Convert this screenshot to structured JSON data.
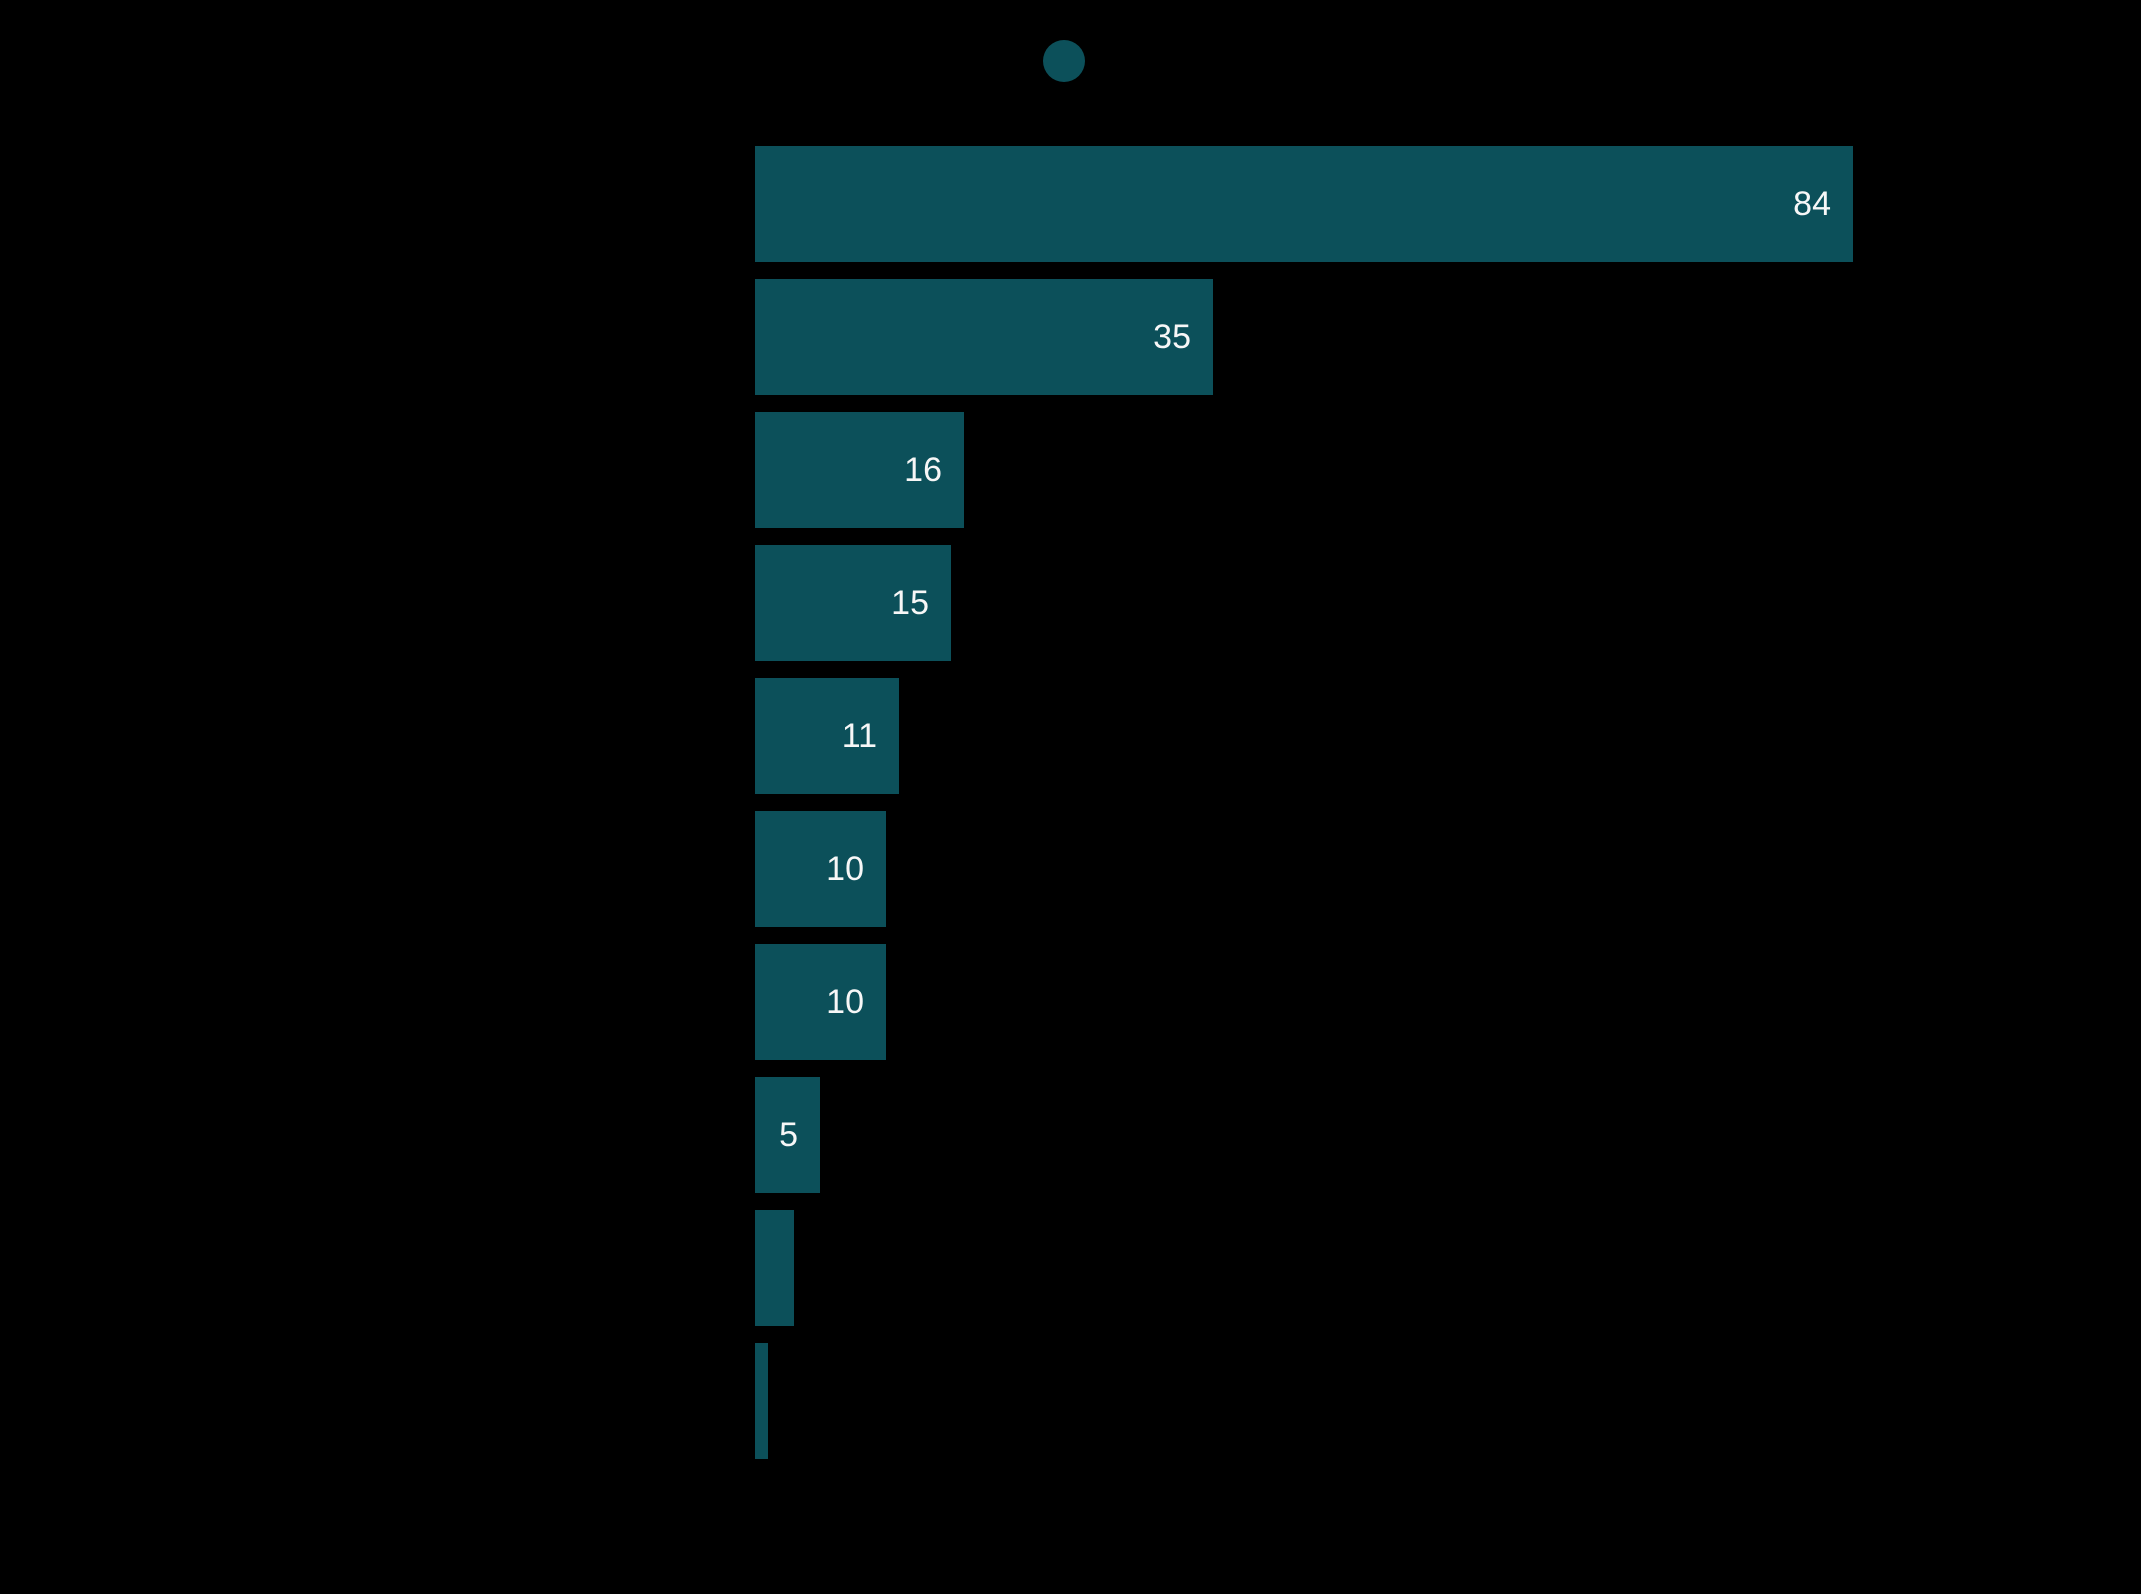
{
  "page": {
    "background_color": "#000000"
  },
  "legend": {
    "marker_color": "#0c505a",
    "label": "",
    "position": "top-center"
  },
  "chart_data": {
    "type": "bar",
    "orientation": "horizontal",
    "title": "",
    "xlabel": "",
    "ylabel": "",
    "categories": [
      "",
      "",
      "",
      "",
      "",
      "",
      "",
      "",
      "",
      ""
    ],
    "values": [
      84,
      35,
      16,
      15,
      11,
      10,
      10,
      5,
      3,
      1
    ],
    "bar_labels": [
      "84",
      "35",
      "16",
      "15",
      "11",
      "10",
      "10",
      "5",
      "",
      ""
    ],
    "bar_color": "#0c505a",
    "label_color": "#f7f7f7",
    "xlim": [
      0,
      84
    ],
    "grid": false,
    "legend_position": "top-center"
  }
}
